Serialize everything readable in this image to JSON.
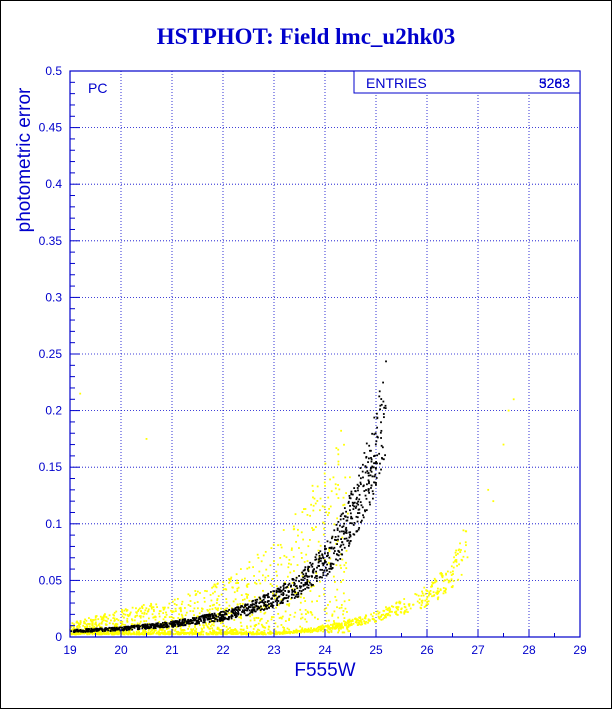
{
  "chart_data": {
    "type": "scatter",
    "title": "HSTPHOT: Field lmc_u2hk03",
    "xlabel": "F555W",
    "ylabel": "photometric error",
    "xlim": [
      19,
      29
    ],
    "ylim": [
      0,
      0.5
    ],
    "x_ticks": [
      "19",
      "20",
      "21",
      "22",
      "23",
      "24",
      "25",
      "26",
      "27",
      "28",
      "29"
    ],
    "y_ticks": [
      "0",
      "0.05",
      "0.1",
      "0.15",
      "0.2",
      "0.25",
      "0.3",
      "0.35",
      "0.4",
      "0.45",
      "0.5"
    ],
    "grid": true,
    "panel_label": "PC",
    "stats_box": {
      "label": "ENTRIES",
      "values": [
        "5283",
        "3263"
      ]
    },
    "colors": {
      "axis": "#0000cc",
      "grid": "#0000cc",
      "series_a": "#ffff00",
      "series_b": "#000000"
    },
    "series": [
      {
        "color": "#ffff00",
        "trend": [
          [
            19.0,
            0.003
          ],
          [
            20.0,
            0.003
          ],
          [
            21.0,
            0.003
          ],
          [
            22.0,
            0.003
          ],
          [
            23.0,
            0.003
          ],
          [
            23.5,
            0.005
          ],
          [
            24.0,
            0.008
          ],
          [
            24.5,
            0.012
          ],
          [
            25.0,
            0.018
          ],
          [
            25.5,
            0.026
          ],
          [
            26.0,
            0.036
          ],
          [
            26.5,
            0.055
          ],
          [
            26.8,
            0.085
          ]
        ],
        "scatter_envelope": [
          [
            19.0,
            0.01
          ],
          [
            20.0,
            0.02
          ],
          [
            21.0,
            0.03
          ],
          [
            22.0,
            0.045
          ],
          [
            23.0,
            0.08
          ],
          [
            23.5,
            0.11
          ],
          [
            24.0,
            0.15
          ],
          [
            24.5,
            0.2
          ]
        ],
        "outliers": [
          [
            27.2,
            0.13
          ],
          [
            27.3,
            0.12
          ],
          [
            27.6,
            0.2
          ],
          [
            27.7,
            0.21
          ],
          [
            27.5,
            0.17
          ],
          [
            20.5,
            0.175
          ],
          [
            19.2,
            0.215
          ]
        ]
      },
      {
        "color": "#000000",
        "trend": [
          [
            19.0,
            0.005
          ],
          [
            20.0,
            0.007
          ],
          [
            21.0,
            0.011
          ],
          [
            22.0,
            0.018
          ],
          [
            22.5,
            0.024
          ],
          [
            23.0,
            0.033
          ],
          [
            23.5,
            0.045
          ],
          [
            24.0,
            0.065
          ],
          [
            24.3,
            0.085
          ],
          [
            24.6,
            0.11
          ],
          [
            24.8,
            0.135
          ],
          [
            25.0,
            0.16
          ],
          [
            25.2,
            0.2
          ]
        ]
      }
    ]
  }
}
